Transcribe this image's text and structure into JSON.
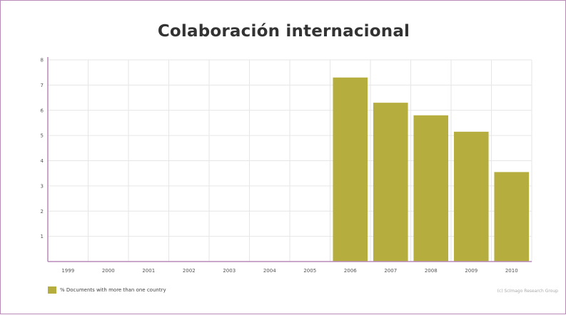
{
  "chart_data": {
    "type": "bar",
    "title": "Colaboración internacional",
    "categories": [
      "1999",
      "2000",
      "2001",
      "2002",
      "2003",
      "2004",
      "2005",
      "2006",
      "2007",
      "2008",
      "2009",
      "2010"
    ],
    "series": [
      {
        "name": "% Documents with more than one country",
        "values": [
          0,
          0,
          0,
          0,
          0,
          0,
          0,
          7.3,
          6.3,
          5.8,
          5.15,
          3.55
        ]
      }
    ],
    "xlabel": "",
    "ylabel": "",
    "ylim": [
      0,
      8
    ],
    "yticks": [
      "1",
      "2",
      "3",
      "4",
      "5",
      "6",
      "7",
      "8"
    ],
    "grid": true,
    "legend_position": "bottom-left",
    "colors": {
      "bar": "#b5ad3d",
      "grid": "#e6e6e6",
      "axis": "#b98ab8"
    }
  },
  "credit": "(c) ScImago Research Group"
}
